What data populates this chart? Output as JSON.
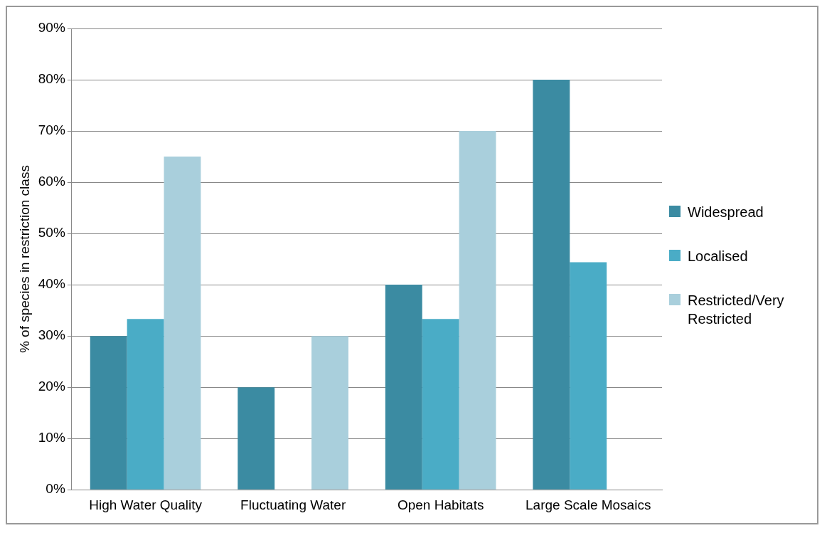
{
  "chart_data": {
    "type": "bar",
    "ylabel": "% of species in restriction class",
    "categories": [
      "High Water Quality",
      "Fluctuating Water",
      "Open Habitats",
      "Large Scale Mosaics"
    ],
    "series": [
      {
        "name": "Widespread",
        "color": "#3b8ba2",
        "values": [
          30,
          20,
          40,
          80
        ]
      },
      {
        "name": "Localised",
        "color": "#4aacc6",
        "values": [
          33.3,
          0,
          33.3,
          44.4
        ]
      },
      {
        "name": "Restricted/Very Restricted",
        "color": "#a9cfdc",
        "values": [
          65,
          30,
          70,
          0
        ]
      }
    ],
    "ylim": [
      0,
      90
    ],
    "yticks": [
      {
        "value": 0,
        "label": "0%"
      },
      {
        "value": 10,
        "label": "10%"
      },
      {
        "value": 20,
        "label": "20%"
      },
      {
        "value": 30,
        "label": "30%"
      },
      {
        "value": 40,
        "label": "40%"
      },
      {
        "value": 50,
        "label": "50%"
      },
      {
        "value": 60,
        "label": "60%"
      },
      {
        "value": 70,
        "label": "70%"
      },
      {
        "value": 80,
        "label": "80%"
      },
      {
        "value": 90,
        "label": "90%"
      }
    ],
    "grid": "y",
    "legend": "right"
  }
}
